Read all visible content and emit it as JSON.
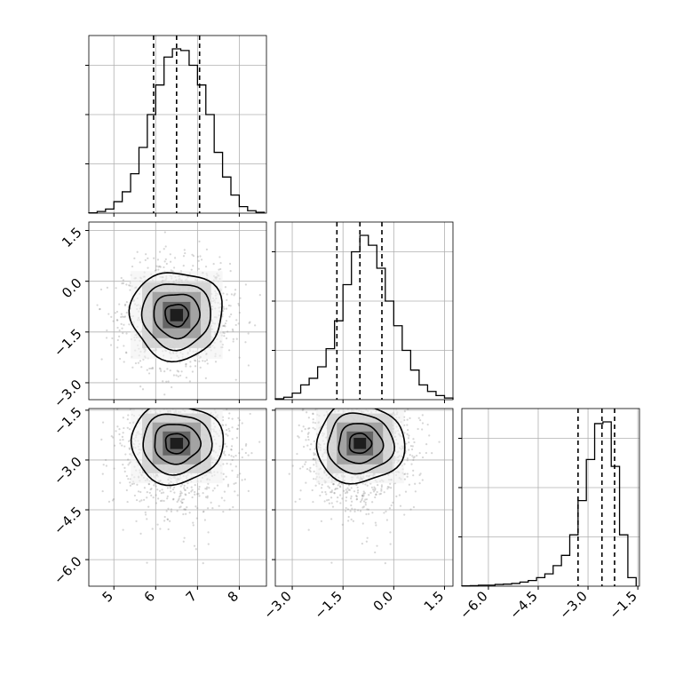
{
  "chart_data": {
    "type": "corner",
    "grid": true,
    "variables": [
      {
        "ticks": [
          5,
          6,
          7,
          8
        ],
        "tick_labels": [
          "5",
          "6",
          "7",
          "8"
        ],
        "range": [
          4.4,
          8.65
        ]
      },
      {
        "ticks": [
          -3,
          -1.5,
          0,
          1.5
        ],
        "tick_labels": [
          "−3.0",
          "−1.5",
          "0.0",
          "1.5"
        ],
        "range": [
          -3.5,
          1.75
        ]
      },
      {
        "ticks": [
          -6,
          -4.5,
          -3,
          -1.5
        ],
        "tick_labels": [
          "−6.0",
          "−4.5",
          "−3.0",
          "−1.5"
        ],
        "range": [
          -6.8,
          -1.45
        ]
      }
    ],
    "histograms": [
      {
        "variable": 0,
        "edges": [
          4.4,
          4.6,
          4.8,
          5.0,
          5.2,
          5.4,
          5.6,
          5.8,
          6.0,
          6.2,
          6.4,
          6.6,
          6.8,
          7.0,
          7.2,
          7.4,
          7.6,
          7.8,
          8.0,
          8.2,
          8.4,
          8.6
        ],
        "counts": [
          0.2,
          1.0,
          2.5,
          7,
          13,
          24,
          40,
          60,
          78,
          95,
          100,
          99,
          90,
          78,
          60,
          37,
          22,
          11,
          4,
          1.5,
          0.5
        ],
        "quantiles": [
          5.95,
          6.5,
          7.05
        ]
      },
      {
        "variable": 1,
        "edges": [
          -3.5,
          -3.25,
          -3.0,
          -2.75,
          -2.5,
          -2.25,
          -2.0,
          -1.75,
          -1.5,
          -1.25,
          -1.0,
          -0.75,
          -0.5,
          -0.25,
          0.0,
          0.25,
          0.5,
          0.75,
          1.0,
          1.25,
          1.5,
          1.75
        ],
        "counts": [
          0.5,
          1.5,
          4,
          9,
          13,
          20,
          31,
          48,
          70,
          90,
          100,
          94,
          80,
          60,
          45,
          30,
          18,
          9,
          5,
          2.5,
          1
        ],
        "quantiles": [
          -1.68,
          -1.0,
          -0.35
        ]
      },
      {
        "variable": 2,
        "edges": [
          -6.8,
          -6.55,
          -6.3,
          -6.05,
          -5.8,
          -5.55,
          -5.3,
          -5.05,
          -4.8,
          -4.55,
          -4.3,
          -4.05,
          -3.8,
          -3.55,
          -3.3,
          -3.05,
          -2.8,
          -2.55,
          -2.3,
          -2.05,
          -1.8,
          -1.55
        ],
        "counts": [
          0.2,
          0.3,
          0.6,
          0.6,
          1.0,
          1.2,
          1.6,
          2.4,
          3.3,
          5.0,
          7.2,
          12,
          18,
          30,
          50,
          74,
          95,
          96,
          70,
          30,
          5
        ],
        "quantiles": [
          -3.3,
          -2.58,
          -2.2
        ]
      }
    ],
    "joint_panels": [
      {
        "x_variable": 0,
        "y_variable": 1,
        "center": [
          6.5,
          -1.0
        ],
        "sigma": [
          0.55,
          0.65
        ],
        "correlation": 0
      },
      {
        "x_variable": 0,
        "y_variable": 2,
        "center": [
          6.5,
          -2.5
        ],
        "sigma": [
          0.55,
          0.6
        ],
        "correlation": 0
      },
      {
        "x_variable": 1,
        "y_variable": 2,
        "center": [
          -1.0,
          -2.5
        ],
        "sigma": [
          0.65,
          0.6
        ],
        "correlation": 0
      }
    ]
  }
}
